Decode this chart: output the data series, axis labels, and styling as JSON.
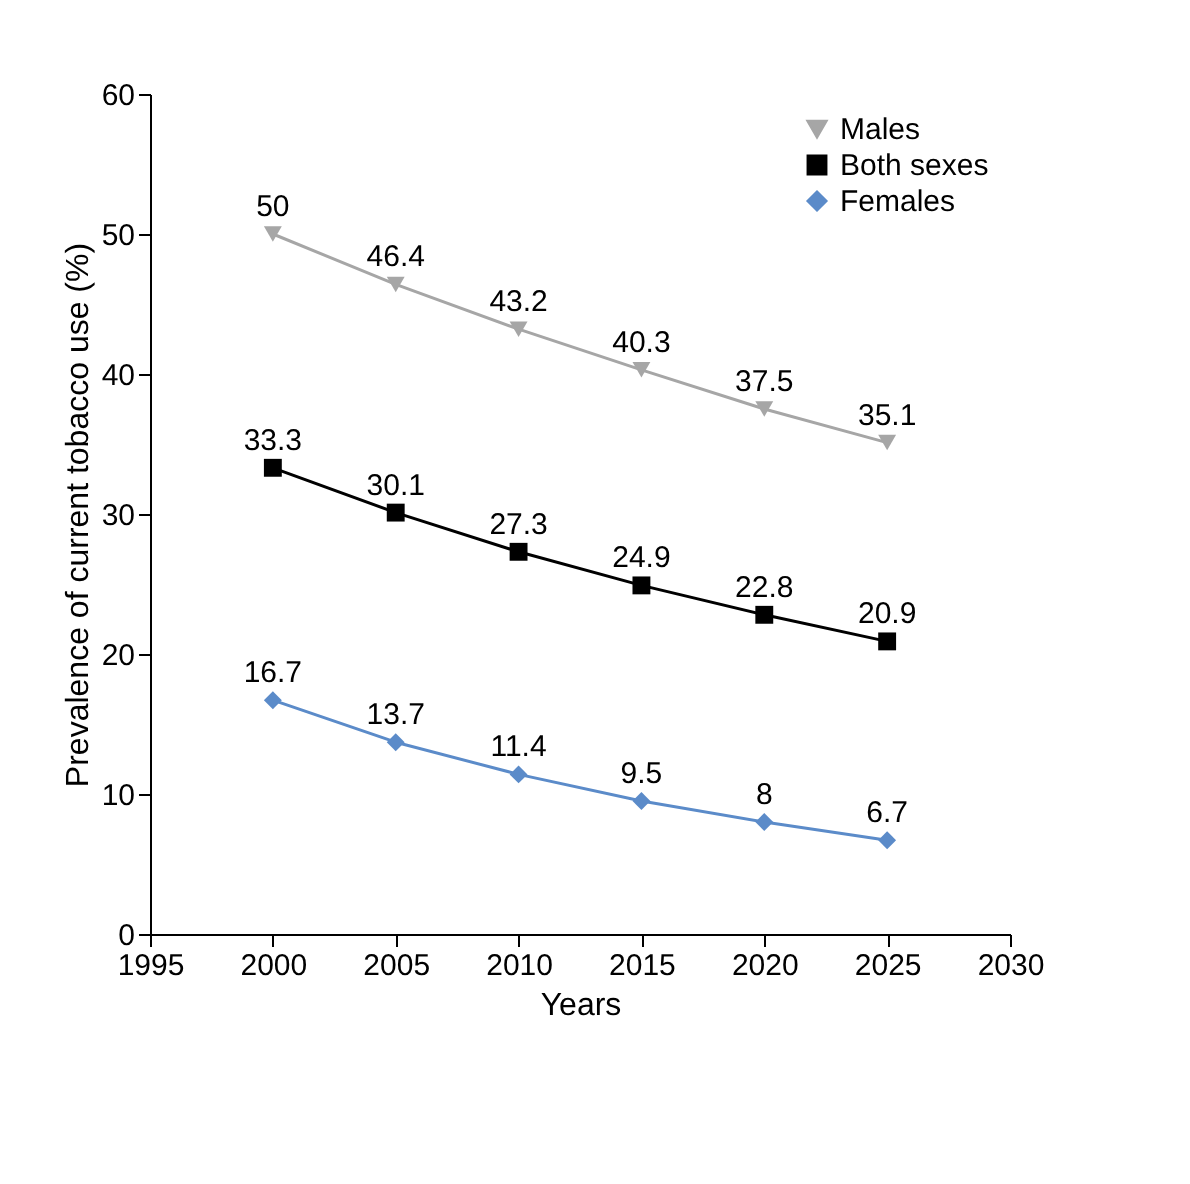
{
  "chart_data": {
    "type": "line",
    "xlabel": "Years",
    "ylabel": "Prevalence of current tobacco use (%)",
    "x": [
      2000,
      2005,
      2010,
      2015,
      2020,
      2025
    ],
    "series": [
      {
        "name": "Males",
        "color": "#a6a6a6",
        "marker": "triangle",
        "values": [
          50,
          46.4,
          43.2,
          40.3,
          37.5,
          35.1
        ]
      },
      {
        "name": "Both sexes",
        "color": "#000000",
        "marker": "square",
        "values": [
          33.3,
          30.1,
          27.3,
          24.9,
          22.8,
          20.9
        ]
      },
      {
        "name": "Females",
        "color": "#5b8bc9",
        "marker": "diamond",
        "values": [
          16.7,
          13.7,
          11.4,
          9.5,
          8,
          6.7
        ]
      }
    ],
    "xlim": [
      1995,
      2030
    ],
    "xticks": [
      1995,
      2000,
      2005,
      2010,
      2015,
      2020,
      2025,
      2030
    ],
    "ylim": [
      0,
      60
    ],
    "yticks": [
      0,
      10,
      20,
      30,
      40,
      50,
      60
    ],
    "data_labels": true,
    "legend": "top right",
    "grid": false,
    "line_style": "solid"
  }
}
